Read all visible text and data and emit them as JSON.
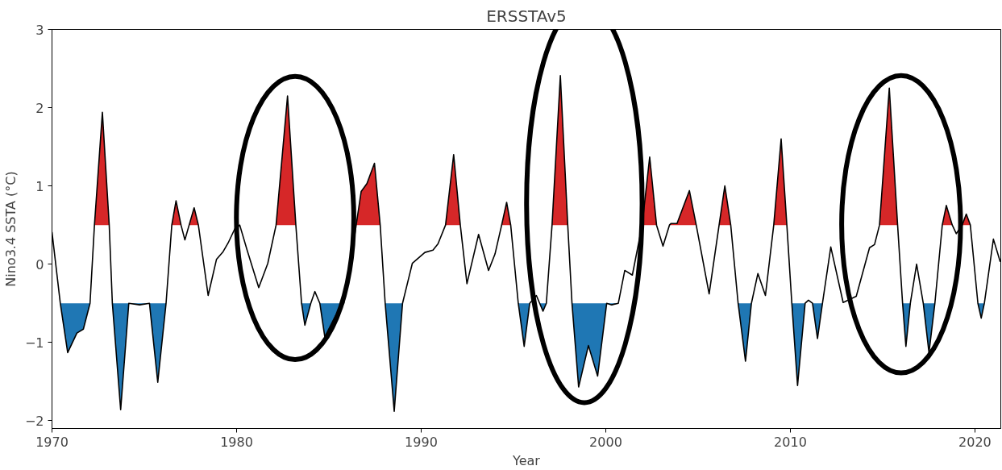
{
  "chart_data": {
    "type": "line",
    "title": "ERSSTAv5",
    "xlabel": "Year",
    "ylabel": "Nino3.4 SSTA (°C)",
    "xlim": [
      1970,
      2021.4
    ],
    "ylim": [
      -2.1,
      3
    ],
    "xticks": [
      1970,
      1980,
      1990,
      2000,
      2010,
      2020
    ],
    "yticks": [
      -2,
      -1,
      0,
      1,
      2,
      3
    ],
    "grid": false,
    "series": [
      {
        "type": "area",
        "color": "#d62728",
        "x": [
          1972.3,
          1972.73,
          1973.1,
          1975,
          1976.49,
          1976.72,
          1976.99,
          1977.2,
          1977.43,
          1977.7,
          1977.93,
          1980,
          1982.14,
          1982.76,
          1983.21,
          1985,
          1986.48,
          1986.75,
          1987.06,
          1987.47,
          1987.78,
          1990,
          1991.32,
          1991.76,
          1992.12,
          1993,
          1994.36,
          1994.63,
          1994.85,
          1996,
          1997.09,
          1997.54,
          1997.94,
          2000,
          2001.97,
          2002.38,
          2002.75,
          2003.1,
          2003.45,
          2003.54,
          2003.86,
          2004.53,
          2004.9,
          2005.6,
          2006.14,
          2006.45,
          2006.77,
          2008,
          2009.1,
          2009.5,
          2009.81,
          2012,
          2014.83,
          2015.36,
          2015.81,
          2017,
          2018.23,
          2018.45,
          2018.77,
          2018.99,
          2019.31,
          2019.53,
          2019.75
        ],
        "values": [
          0.5,
          1.94,
          0.5,
          null,
          0.5,
          0.81,
          0.5,
          null,
          0.5,
          0.72,
          0.5,
          null,
          0.5,
          2.15,
          0.5,
          null,
          0.5,
          0.93,
          1.03,
          1.29,
          0.5,
          null,
          0.5,
          1.4,
          0.5,
          null,
          0.5,
          0.79,
          0.5,
          null,
          0.5,
          2.41,
          0.5,
          null,
          0.5,
          1.37,
          0.5,
          null,
          0.5,
          0.52,
          0.52,
          0.94,
          0.5,
          null,
          0.5,
          1.0,
          0.5,
          null,
          0.5,
          1.6,
          0.5,
          null,
          0.5,
          2.25,
          0.5,
          null,
          0.5,
          0.75,
          0.5,
          null,
          0.5,
          0.64,
          0.5
        ]
      },
      {
        "type": "area",
        "color": "#1f77b4",
        "x": [
          1970.45,
          1970.85,
          1971.35,
          1971.7,
          1972.06,
          1972.7,
          1973.27,
          1973.72,
          1974.16,
          1974.75,
          1975.28,
          1975.73,
          1976.18,
          1980,
          1983.52,
          1983.7,
          1984.02,
          1984.24,
          1984.51,
          1984.78,
          1985.36,
          1985.81,
          1987,
          1988.05,
          1988.54,
          1988.99,
          1992,
          1995.26,
          1995.58,
          1995.88,
          1996.24,
          1996.42,
          1996.6,
          1996.78,
          1997.5,
          1998.17,
          1998.53,
          1999.06,
          1999.56,
          2000.05,
          2000.32,
          2000.68,
          2004,
          2007.17,
          2007.57,
          2007.89,
          2009,
          2010.08,
          2010.39,
          2010.8,
          2010.98,
          2011.2,
          2011.47,
          2011.74,
          2014,
          2016.08,
          2016.26,
          2016.5,
          2016.84,
          2017.2,
          2017.51,
          2017.83,
          2019,
          2020.16,
          2020.34,
          2020.51
        ],
        "values": [
          -0.5,
          -1.13,
          -0.88,
          -0.83,
          -0.5,
          null,
          -0.5,
          -1.86,
          -0.5,
          -0.52,
          -0.5,
          -1.51,
          -0.5,
          null,
          -0.5,
          -0.78,
          -0.5,
          null,
          -0.5,
          -0.93,
          -0.66,
          -0.5,
          null,
          -0.5,
          -1.88,
          -0.5,
          null,
          -0.5,
          -1.05,
          -0.5,
          null,
          -0.5,
          -0.6,
          -0.5,
          null,
          -0.5,
          -1.57,
          -1.04,
          -1.43,
          -0.5,
          -0.52,
          -0.5,
          null,
          -0.5,
          -1.24,
          -0.5,
          null,
          -0.5,
          -1.55,
          -0.5,
          null,
          -0.5,
          -0.95,
          -0.5,
          null,
          -0.5,
          -1.05,
          -0.5,
          null,
          -0.5,
          -1.13,
          -0.5,
          null,
          -0.5,
          -0.69,
          -0.5
        ]
      },
      {
        "color": "#000000",
        "x": [
          1970.0,
          1970.45,
          1970.85,
          1971.35,
          1971.7,
          1972.06,
          1972.3,
          1972.73,
          1973.1,
          1973.27,
          1973.72,
          1974.16,
          1974.75,
          1975.28,
          1975.73,
          1976.18,
          1976.49,
          1976.72,
          1976.99,
          1977.2,
          1977.43,
          1977.7,
          1977.93,
          1978.46,
          1978.91,
          1979.27,
          1979.54,
          1979.9,
          1980.17,
          1980.57,
          1981.2,
          1981.69,
          1982.14,
          1982.76,
          1983.21,
          1983.52,
          1983.7,
          1984.02,
          1984.24,
          1984.51,
          1984.78,
          1985.36,
          1985.81,
          1986.17,
          1986.48,
          1986.75,
          1987.06,
          1987.47,
          1987.78,
          1988.05,
          1988.54,
          1988.99,
          1989.52,
          1990.2,
          1990.64,
          1990.91,
          1991.32,
          1991.76,
          1992.12,
          1992.48,
          1993.11,
          1993.65,
          1994.0,
          1994.36,
          1994.63,
          1994.85,
          1995.26,
          1995.58,
          1995.88,
          1996.24,
          1996.42,
          1996.6,
          1996.78,
          1997.09,
          1997.54,
          1997.94,
          1998.17,
          1998.53,
          1999.06,
          1999.56,
          2000.05,
          2000.32,
          2000.68,
          2001.03,
          2001.44,
          2001.97,
          2002.38,
          2002.75,
          2003.1,
          2003.45,
          2003.54,
          2003.86,
          2004.53,
          2004.9,
          2005.6,
          2006.14,
          2006.45,
          2006.77,
          2007.17,
          2007.57,
          2007.89,
          2008.24,
          2008.65,
          2009.1,
          2009.5,
          2009.81,
          2010.08,
          2010.39,
          2010.8,
          2010.98,
          2011.2,
          2011.47,
          2011.74,
          2012.19,
          2012.86,
          2013.57,
          2014.29,
          2014.56,
          2014.83,
          2015.36,
          2015.81,
          2016.08,
          2016.26,
          2016.5,
          2016.84,
          2017.2,
          2017.51,
          2017.83,
          2018.23,
          2018.45,
          2018.77,
          2018.99,
          2019.31,
          2019.53,
          2019.75,
          2020.16,
          2020.34,
          2020.51,
          2021.0,
          2021.37
        ],
        "values": [
          0.41,
          -0.5,
          -1.13,
          -0.88,
          -0.83,
          -0.5,
          0.5,
          1.94,
          0.5,
          -0.5,
          -1.86,
          -0.5,
          -0.52,
          -0.5,
          -1.51,
          -0.5,
          0.5,
          0.81,
          0.5,
          0.31,
          0.5,
          0.72,
          0.5,
          -0.4,
          0.06,
          0.16,
          0.27,
          0.45,
          0.5,
          0.18,
          -0.3,
          0.01,
          0.5,
          2.15,
          0.5,
          -0.5,
          -0.78,
          -0.5,
          -0.35,
          -0.5,
          -0.93,
          -0.66,
          -0.5,
          0.01,
          0.5,
          0.93,
          1.03,
          1.29,
          0.5,
          -0.5,
          -1.88,
          -0.5,
          0.01,
          0.15,
          0.18,
          0.26,
          0.5,
          1.4,
          0.5,
          -0.25,
          0.38,
          -0.08,
          0.13,
          0.5,
          0.79,
          0.5,
          -0.5,
          -1.05,
          -0.5,
          -0.4,
          -0.5,
          -0.6,
          -0.5,
          0.5,
          2.41,
          0.5,
          -0.5,
          -1.57,
          -1.04,
          -1.43,
          -0.5,
          -0.52,
          -0.5,
          -0.08,
          -0.14,
          0.5,
          1.37,
          0.5,
          0.23,
          0.5,
          0.52,
          0.52,
          0.94,
          0.5,
          -0.38,
          0.5,
          1.0,
          0.5,
          -0.5,
          -1.24,
          -0.5,
          -0.12,
          -0.4,
          0.5,
          1.6,
          0.5,
          -0.5,
          -1.55,
          -0.5,
          -0.46,
          -0.5,
          -0.95,
          -0.5,
          0.22,
          -0.49,
          -0.41,
          0.21,
          0.25,
          0.5,
          2.25,
          0.5,
          -0.5,
          -1.05,
          -0.5,
          0.0,
          -0.5,
          -1.13,
          -0.5,
          0.5,
          0.75,
          0.5,
          0.39,
          0.5,
          0.64,
          0.5,
          -0.5,
          -0.69,
          -0.5,
          0.32,
          0.03
        ]
      }
    ]
  }
}
